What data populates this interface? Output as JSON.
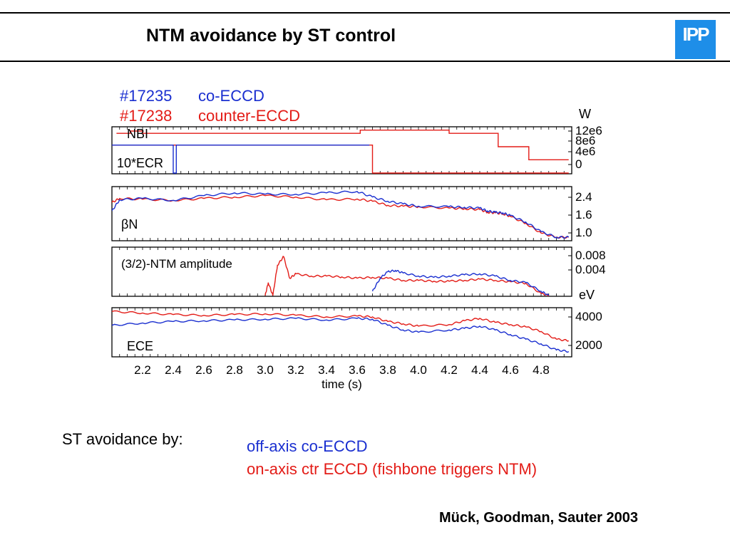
{
  "slide": {
    "title": "NTM avoidance by ST control",
    "logo_text": "IPP",
    "logo_color": "#1e8ee8",
    "st_label": "ST avoidance by:",
    "items": [
      {
        "text": "off-axis co-ECCD",
        "color": "#1a2fd0"
      },
      {
        "text": "on-axis ctr ECCD (fishbone triggers NTM)",
        "color": "#e31c17"
      }
    ],
    "credit": "Mück, Goodman, Sauter 2003"
  },
  "chart_data": {
    "type": "line",
    "legend": [
      {
        "shot": "#17235",
        "name": "co-ECCD",
        "color": "#1a2fd0"
      },
      {
        "shot": "#17238",
        "name": "counter-ECCD",
        "color": "#e31c17"
      }
    ],
    "x": {
      "label": "time  (s)",
      "range": [
        2.0,
        5.0
      ],
      "ticks": [
        "2.2",
        "2.4",
        "2.6",
        "2.8",
        "3.0",
        "3.2",
        "3.4",
        "3.6",
        "3.8",
        "4.0",
        "4.2",
        "4.4",
        "4.6",
        "4.8"
      ]
    },
    "panels": [
      {
        "key": "power",
        "labels": [
          "NBI",
          "10*ECR"
        ],
        "unit": "W",
        "yticks": [
          "12e6",
          "8e6",
          "4e6",
          "0"
        ],
        "ylim": [
          0,
          14000000.0
        ],
        "series": [
          {
            "color": "#e31c17",
            "label_ref": "NBI",
            "x": [
              2.03,
              2.12,
              2.12,
              2.2,
              2.2,
              3.62,
              3.62,
              4.2,
              4.2,
              4.52,
              4.52,
              4.72,
              4.72,
              4.98
            ],
            "y": [
              12200000.0,
              12200000.0,
              12900000.0,
              12900000.0,
              12200000.0,
              12200000.0,
              13200000.0,
              13200000.0,
              12200000.0,
              12200000.0,
              8100000.0,
              8100000.0,
              4100000.0,
              4100000.0
            ]
          },
          {
            "color": "#e31c17",
            "label_ref": "10*ECR",
            "x": [
              2.0,
              3.7,
              3.7,
              4.98
            ],
            "y": [
              8600000.0,
              8600000.0,
              0,
              0
            ]
          },
          {
            "color": "#1a2fd0",
            "label_ref": "10*ECR",
            "x": [
              2.0,
              2.4,
              2.4,
              2.42,
              2.42,
              3.68
            ],
            "y": [
              8600000.0,
              8600000.0,
              0,
              0,
              8600000.0,
              8600000.0
            ]
          }
        ]
      },
      {
        "key": "beta",
        "labels": [
          "βN"
        ],
        "yticks": [
          "2.4",
          "1.6",
          "1.0"
        ],
        "ylim": [
          0.9,
          2.8
        ],
        "series": [
          {
            "color": "#e31c17",
            "x": [
              2.0,
              2.05,
              2.2,
              2.4,
              2.6,
              2.8,
              3.0,
              3.2,
              3.4,
              3.6,
              3.7,
              3.8,
              3.9,
              4.0,
              4.2,
              4.3,
              4.4,
              4.45,
              4.5,
              4.55,
              4.6,
              4.7,
              4.8,
              4.9,
              4.98
            ],
            "y": [
              2.25,
              2.4,
              2.37,
              2.33,
              2.4,
              2.45,
              2.5,
              2.45,
              2.35,
              2.38,
              2.3,
              2.15,
              2.12,
              2.1,
              2.05,
              2.03,
              2.0,
              1.9,
              1.88,
              1.85,
              1.75,
              1.5,
              1.15,
              1.0,
              1.0
            ]
          },
          {
            "color": "#1a2fd0",
            "x": [
              2.0,
              2.05,
              2.2,
              2.4,
              2.6,
              2.8,
              3.0,
              3.2,
              3.4,
              3.6,
              3.7,
              3.8,
              3.9,
              4.0,
              4.2,
              4.3,
              4.4,
              4.45,
              4.5,
              4.55,
              4.6,
              4.7,
              4.8,
              4.9,
              4.98
            ],
            "y": [
              1.95,
              2.35,
              2.4,
              2.33,
              2.5,
              2.6,
              2.55,
              2.55,
              2.6,
              2.65,
              2.45,
              2.3,
              2.2,
              2.12,
              2.1,
              2.08,
              2.05,
              1.95,
              1.9,
              1.88,
              1.78,
              1.55,
              1.2,
              1.0,
              1.0
            ]
          }
        ]
      },
      {
        "key": "ntm",
        "labels": [
          "(3/2)-NTM amplitude"
        ],
        "yticks": [
          "0.008",
          "0.004"
        ],
        "ylim": [
          0,
          0.011
        ],
        "series": [
          {
            "color": "#e31c17",
            "x": [
              3.0,
              3.02,
              3.05,
              3.08,
              3.12,
              3.16,
              3.2,
              3.3,
              3.4,
              3.5,
              3.6,
              3.7,
              3.8,
              3.9,
              4.0,
              4.1,
              4.2,
              4.3,
              4.4,
              4.5,
              4.6,
              4.7,
              4.8,
              4.85
            ],
            "y": [
              0.0,
              0.003,
              0.0,
              0.007,
              0.009,
              0.004,
              0.005,
              0.0045,
              0.0045,
              0.0043,
              0.004,
              0.0042,
              0.004,
              0.0035,
              0.0035,
              0.0033,
              0.0033,
              0.0035,
              0.0038,
              0.0035,
              0.0032,
              0.0028,
              0.0005,
              0.0
            ]
          },
          {
            "color": "#1a2fd0",
            "x": [
              3.7,
              3.75,
              3.8,
              3.85,
              3.9,
              4.0,
              4.1,
              4.2,
              4.3,
              4.4,
              4.5,
              4.6,
              4.7,
              4.8,
              4.85
            ],
            "y": [
              0.001,
              0.004,
              0.0055,
              0.0058,
              0.0052,
              0.0045,
              0.0042,
              0.0045,
              0.0048,
              0.005,
              0.0045,
              0.0035,
              0.003,
              0.001,
              0.0
            ]
          }
        ]
      },
      {
        "key": "ece",
        "labels": [
          "ECE"
        ],
        "unit": "eV",
        "yticks": [
          "4000",
          "2000"
        ],
        "ylim": [
          1500,
          4600
        ],
        "series": [
          {
            "color": "#e31c17",
            "x": [
              2.0,
              2.2,
              2.4,
              2.6,
              2.8,
              3.0,
              3.2,
              3.4,
              3.6,
              3.7,
              3.8,
              3.9,
              4.0,
              4.2,
              4.3,
              4.4,
              4.5,
              4.6,
              4.7,
              4.8,
              4.9,
              4.98
            ],
            "y": [
              4400,
              4300,
              4200,
              4150,
              4200,
              4250,
              4150,
              4050,
              4100,
              4050,
              3750,
              3600,
              3450,
              3550,
              3800,
              3950,
              3700,
              3550,
              3400,
              3100,
              2600,
              2500
            ]
          },
          {
            "color": "#1a2fd0",
            "x": [
              2.0,
              2.2,
              2.4,
              2.6,
              2.8,
              3.0,
              3.2,
              3.4,
              3.6,
              3.7,
              3.8,
              3.9,
              4.0,
              4.2,
              4.3,
              4.4,
              4.5,
              4.6,
              4.7,
              4.8,
              4.9,
              4.98
            ],
            "y": [
              3500,
              3650,
              3750,
              3800,
              3850,
              3900,
              3950,
              3850,
              3950,
              3900,
              3500,
              3200,
              3050,
              3200,
              3300,
              3450,
              3200,
              2900,
              2600,
              2300,
              1900,
              1800
            ]
          }
        ]
      }
    ]
  }
}
